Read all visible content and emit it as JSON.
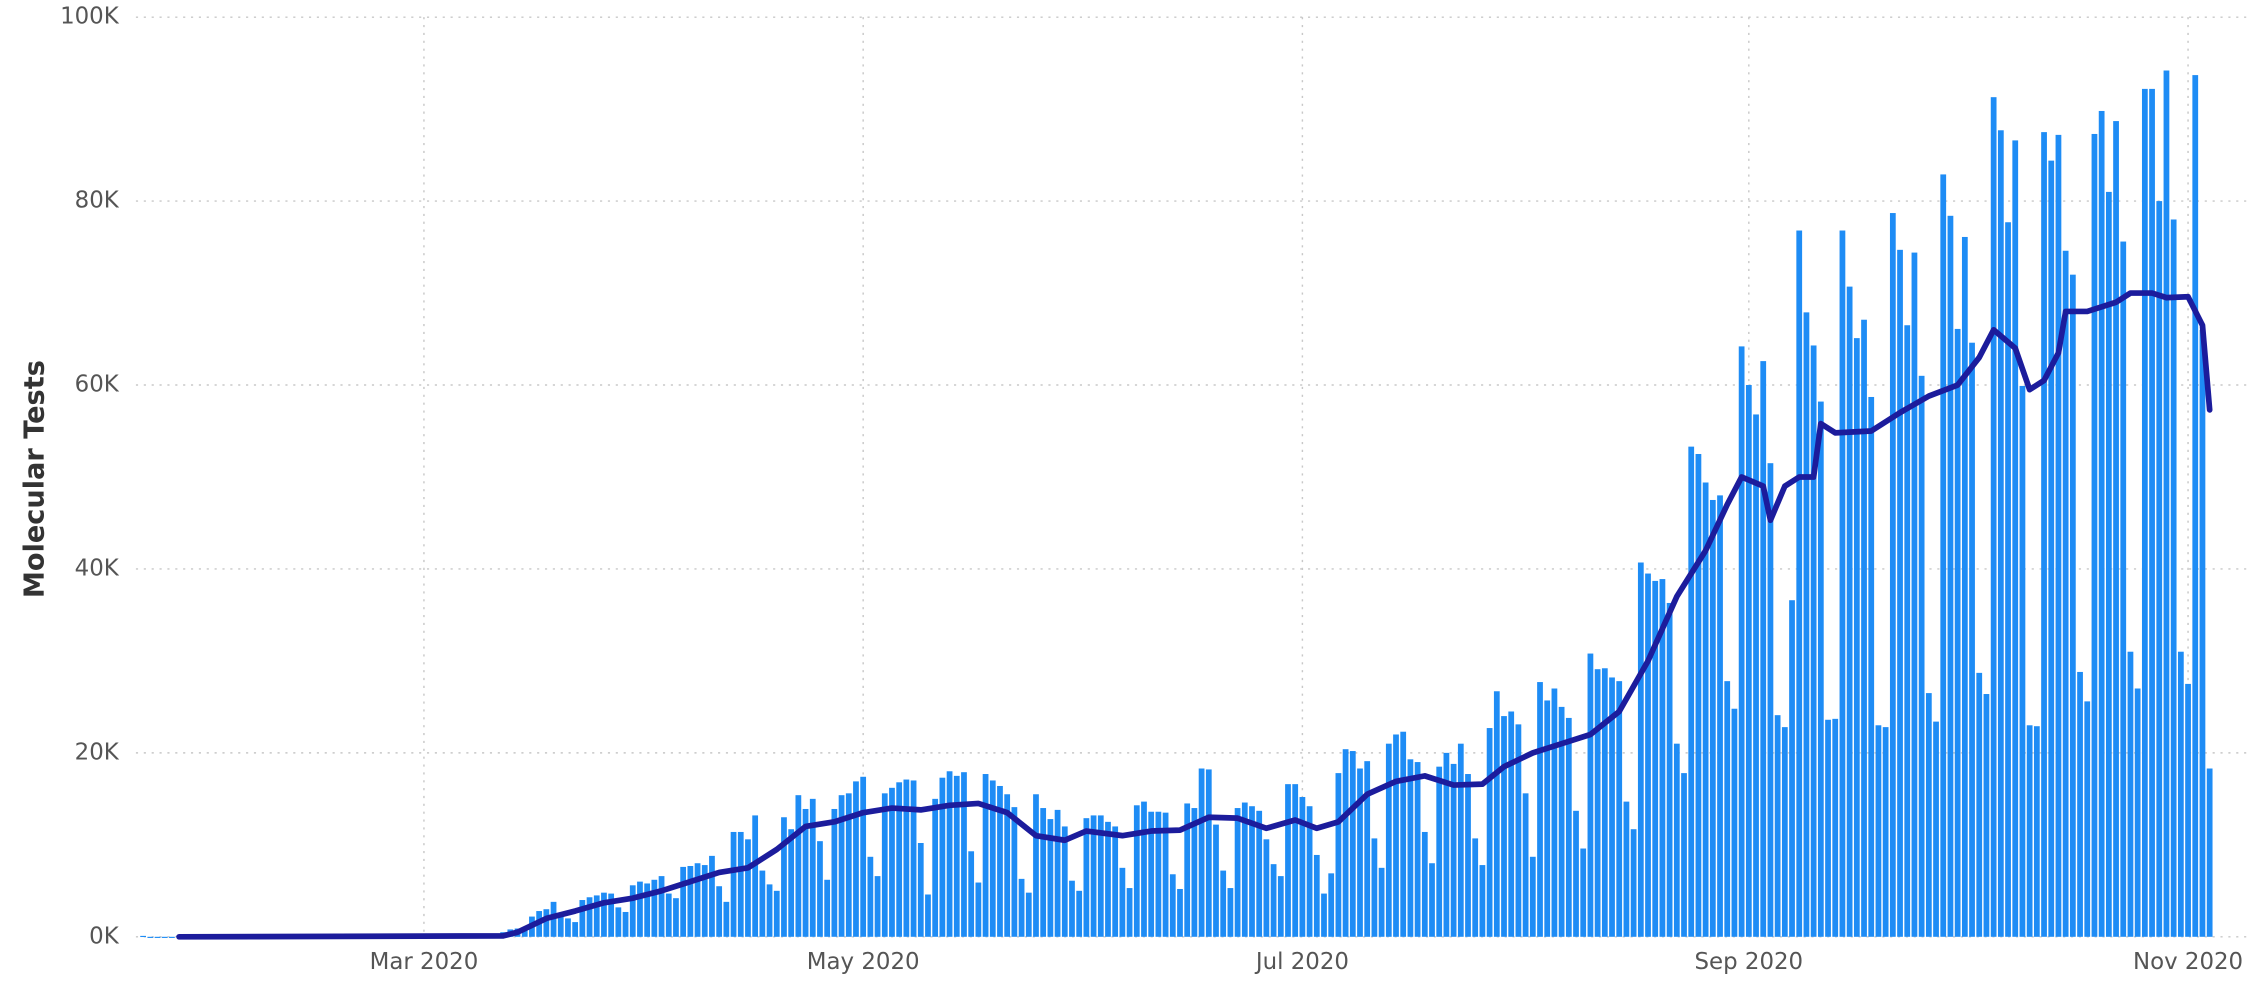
{
  "chart_data": {
    "type": "bar",
    "y_label": "Molecular Tests",
    "xlim": [
      -1,
      289
    ],
    "xticks": [
      {
        "value": 39,
        "label": "Mar 2020"
      },
      {
        "value": 100,
        "label": "May 2020"
      },
      {
        "value": 161,
        "label": "Jul 2020"
      },
      {
        "value": 223,
        "label": "Sep 2020"
      },
      {
        "value": 284,
        "label": "Nov 2020"
      }
    ],
    "ylim": [
      0,
      100000
    ],
    "yticks": [
      {
        "value": 0,
        "label": "0K"
      },
      {
        "value": 20000,
        "label": "20K"
      },
      {
        "value": 40000,
        "label": "40K"
      },
      {
        "value": 60000,
        "label": "60K"
      },
      {
        "value": 80000,
        "label": "80K"
      },
      {
        "value": 100000,
        "label": "100K"
      }
    ],
    "grid": true,
    "series": [
      {
        "type": "bar",
        "color": "#1e8cf5",
        "values": [
          100,
          0,
          0,
          0,
          0,
          100,
          0,
          0,
          0,
          0,
          0,
          0,
          0,
          0,
          0,
          0,
          0,
          0,
          0,
          0,
          0,
          0,
          0,
          0,
          0,
          0,
          0,
          0,
          0,
          0,
          0,
          0,
          0,
          0,
          0,
          0,
          0,
          0,
          0,
          0,
          0,
          0,
          0,
          0,
          0,
          0,
          0,
          100,
          200,
          300,
          500,
          800,
          900,
          1000,
          2200,
          2800,
          3000,
          3800,
          2500,
          2000,
          1600,
          4000,
          4300,
          4500,
          4800,
          4700,
          3200,
          2700,
          5600,
          6000,
          5800,
          6200,
          6600,
          4700,
          4200,
          7600,
          7700,
          8000,
          7800,
          8800,
          5500,
          3800,
          11400,
          11400,
          10600,
          13200,
          7200,
          5700,
          5000,
          13000,
          11700,
          15400,
          13900,
          15000,
          10400,
          6200,
          13900,
          15400,
          15600,
          16900,
          17400,
          8700,
          6600,
          15600,
          16200,
          16800,
          17100,
          17000,
          10200,
          4600,
          15000,
          17300,
          18000,
          17500,
          17900,
          9300,
          5900,
          17700,
          17000,
          16400,
          15500,
          14100,
          6300,
          4800,
          15500,
          14000,
          12800,
          13800,
          12000,
          6100,
          5000,
          12900,
          13200,
          13200,
          12500,
          12000,
          7500,
          5300,
          14300,
          14700,
          13600,
          13600,
          13500,
          6800,
          5200,
          14500,
          14000,
          18300,
          18200,
          12200,
          7200,
          5300,
          14000,
          14600,
          14200,
          13700,
          10600,
          7900,
          6600,
          16600,
          16600,
          15200,
          14200,
          8900,
          4700,
          6900,
          17800,
          20400,
          20200,
          18300,
          19100,
          10700,
          7500,
          21000,
          22000,
          22300,
          19300,
          19000,
          11400,
          8000,
          18500,
          20000,
          18800,
          21000,
          17700,
          10700,
          7800,
          22700,
          26700,
          24000,
          24500,
          23100,
          15600,
          8700,
          27700,
          25700,
          27000,
          25000,
          23800,
          13700,
          9600,
          30800,
          29100,
          29200,
          28200,
          27800,
          14700,
          11700,
          40700,
          39500,
          38700,
          38900,
          36300,
          21000,
          17800,
          53300,
          52500,
          49400,
          47500,
          48000,
          27800,
          24800,
          64200,
          60000,
          56800,
          62600,
          51500,
          24100,
          22800,
          36600,
          76800,
          67900,
          64300,
          58200,
          23600,
          23700,
          76800,
          70700,
          65100,
          67100,
          58700,
          23000,
          22800,
          78700,
          74700,
          66500,
          74400,
          61000,
          26500,
          23400,
          82900,
          78400,
          66100,
          76100,
          64600,
          28700,
          26400,
          91300,
          87700,
          77700,
          86600,
          59900,
          23000,
          22900,
          87500,
          84400,
          87200,
          74600,
          72000,
          28800,
          25600,
          87300,
          89800,
          81000,
          88700,
          75600,
          31000,
          27000,
          92200,
          92200,
          80000,
          94200,
          78000,
          31000,
          27500,
          93700,
          66000,
          18300
        ]
      },
      {
        "type": "line",
        "color": "#1c1c9c",
        "x": [
          5,
          50,
          52,
          56,
          60,
          64,
          68,
          72,
          76,
          80,
          84,
          88,
          92,
          96,
          100,
          104,
          108,
          112,
          116,
          120,
          124,
          128,
          131,
          136,
          140,
          144,
          148,
          152,
          156,
          160,
          163,
          166,
          170,
          174,
          178,
          182,
          186,
          189,
          193,
          197,
          201,
          205,
          209,
          213,
          217,
          220,
          222,
          225,
          226,
          228,
          230,
          232,
          233,
          235,
          240,
          244,
          248,
          252,
          255,
          257,
          260,
          262,
          264,
          266,
          267,
          270,
          274,
          276,
          279,
          281,
          284,
          286,
          287
        ],
        "values": [
          0,
          100,
          500,
          2000,
          2800,
          3700,
          4200,
          5000,
          6000,
          7000,
          7500,
          9500,
          12000,
          12500,
          13500,
          14000,
          13800,
          14300,
          14500,
          13500,
          11000,
          10500,
          11500,
          11000,
          11500,
          11600,
          13000,
          12900,
          11800,
          12700,
          11800,
          12500,
          15500,
          16900,
          17500,
          16500,
          16600,
          18500,
          20000,
          21000,
          22000,
          24500,
          30000,
          37000,
          42000,
          47000,
          50000,
          49000,
          45300,
          49000,
          50000,
          50000,
          55800,
          54800,
          55000,
          57000,
          58800,
          60000,
          63000,
          66000,
          64000,
          59500,
          60500,
          63500,
          68000,
          68000,
          69000,
          70000,
          70000,
          69500,
          69600,
          66500,
          57300
        ]
      }
    ]
  }
}
